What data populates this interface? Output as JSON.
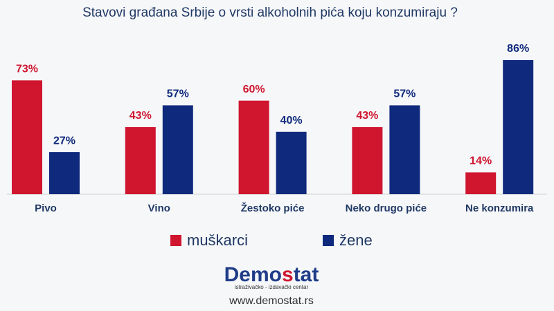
{
  "chart_data": {
    "type": "bar",
    "title": "Stavovi građana Srbije o vrsti alkoholnih pića koju konzumiraju ?",
    "categories": [
      "Pivo",
      "Vino",
      "Žestoko piće",
      "Neko drugo piće",
      "Ne konzumira"
    ],
    "series": [
      {
        "name": "muškarci",
        "color": "#d0152f",
        "values": [
          73,
          43,
          60,
          43,
          14
        ],
        "value_labels": [
          "73%",
          "43%",
          "60%",
          "43%",
          "14%"
        ]
      },
      {
        "name": "žene",
        "color": "#0f2a7c",
        "values": [
          27,
          57,
          40,
          57,
          86
        ],
        "value_labels": [
          "27%",
          "57%",
          "40%",
          "57%",
          "86%"
        ]
      }
    ],
    "legend": "bottom"
  },
  "footer": {
    "logo": [
      "Demo",
      "s",
      "tat"
    ],
    "tagline": "istraživačko - izdavački centar",
    "url": "www.demostat.rs"
  }
}
